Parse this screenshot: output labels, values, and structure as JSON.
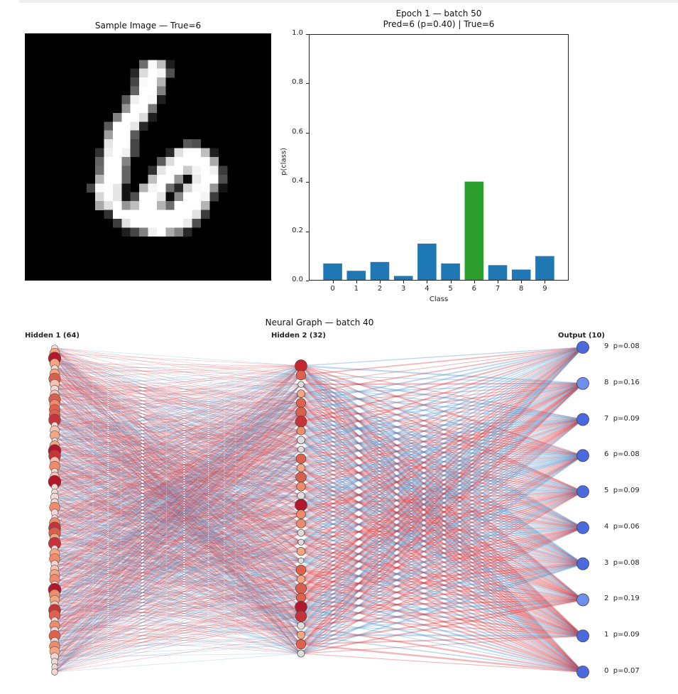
{
  "sample_image": {
    "title": "Sample Image — True=6",
    "pixels_28x28_note": "grayscale MNIST digit",
    "rows": [
      "............................",
      "............................",
      "............................",
      "............................",
      "............................",
      "............................",
      "...............",
      "..."
    ]
  },
  "bar_chart": {
    "title_line1": "Epoch 1 — batch 50",
    "title_line2": "Pred=6 (p=0.40) | True=6",
    "ylabel": "p(class)",
    "xlabel": "Class",
    "yticks": [
      "0.0",
      "0.2",
      "0.4",
      "0.6",
      "0.8",
      "1.0"
    ],
    "xticks": [
      "0",
      "1",
      "2",
      "3",
      "4",
      "5",
      "6",
      "7",
      "8",
      "9"
    ],
    "bar_color": "#1f77b4",
    "highlight_color": "#2ca02c"
  },
  "chart_data": [
    {
      "type": "bar",
      "title": "Epoch 1 — batch 50 / Pred=6 (p=0.40) | True=6",
      "categories": [
        "0",
        "1",
        "2",
        "3",
        "4",
        "5",
        "6",
        "7",
        "8",
        "9"
      ],
      "values": [
        0.067,
        0.037,
        0.073,
        0.016,
        0.148,
        0.067,
        0.401,
        0.06,
        0.042,
        0.097
      ],
      "xlabel": "Class",
      "ylabel": "p(class)",
      "ylim": [
        0,
        1.0
      ],
      "highlight": {
        "category": "6",
        "color": "#2ca02c"
      },
      "grid": false
    },
    {
      "type": "network",
      "title": "Neural Graph — batch 40",
      "layers": [
        {
          "name": "Hidden 1 (64)",
          "size": 64
        },
        {
          "name": "Hidden 2 (32)",
          "size": 32
        },
        {
          "name": "Output (10)",
          "size": 10
        }
      ],
      "outputs": [
        {
          "class": "9",
          "p": 0.08
        },
        {
          "class": "8",
          "p": 0.16
        },
        {
          "class": "7",
          "p": 0.09
        },
        {
          "class": "6",
          "p": 0.08
        },
        {
          "class": "5",
          "p": 0.09
        },
        {
          "class": "4",
          "p": 0.06
        },
        {
          "class": "3",
          "p": 0.08
        },
        {
          "class": "2",
          "p": 0.19
        },
        {
          "class": "1",
          "p": 0.09
        },
        {
          "class": "0",
          "p": 0.07
        }
      ],
      "edge_colors": {
        "positive": "#d6323a",
        "negative": "#4a90c8"
      }
    }
  ],
  "graph": {
    "title": "Neural Graph — batch 40",
    "layer1_label": "Hidden 1 (64)",
    "layer2_label": "Hidden 2 (32)",
    "output_label": "Output (10)",
    "output_labels": [
      "9  p=0.08",
      "8  p=0.16",
      "7  p=0.09",
      "6  p=0.08",
      "5  p=0.09",
      "4  p=0.06",
      "3  p=0.08",
      "2  p=0.19",
      "1  p=0.09",
      "0  p=0.07"
    ]
  }
}
